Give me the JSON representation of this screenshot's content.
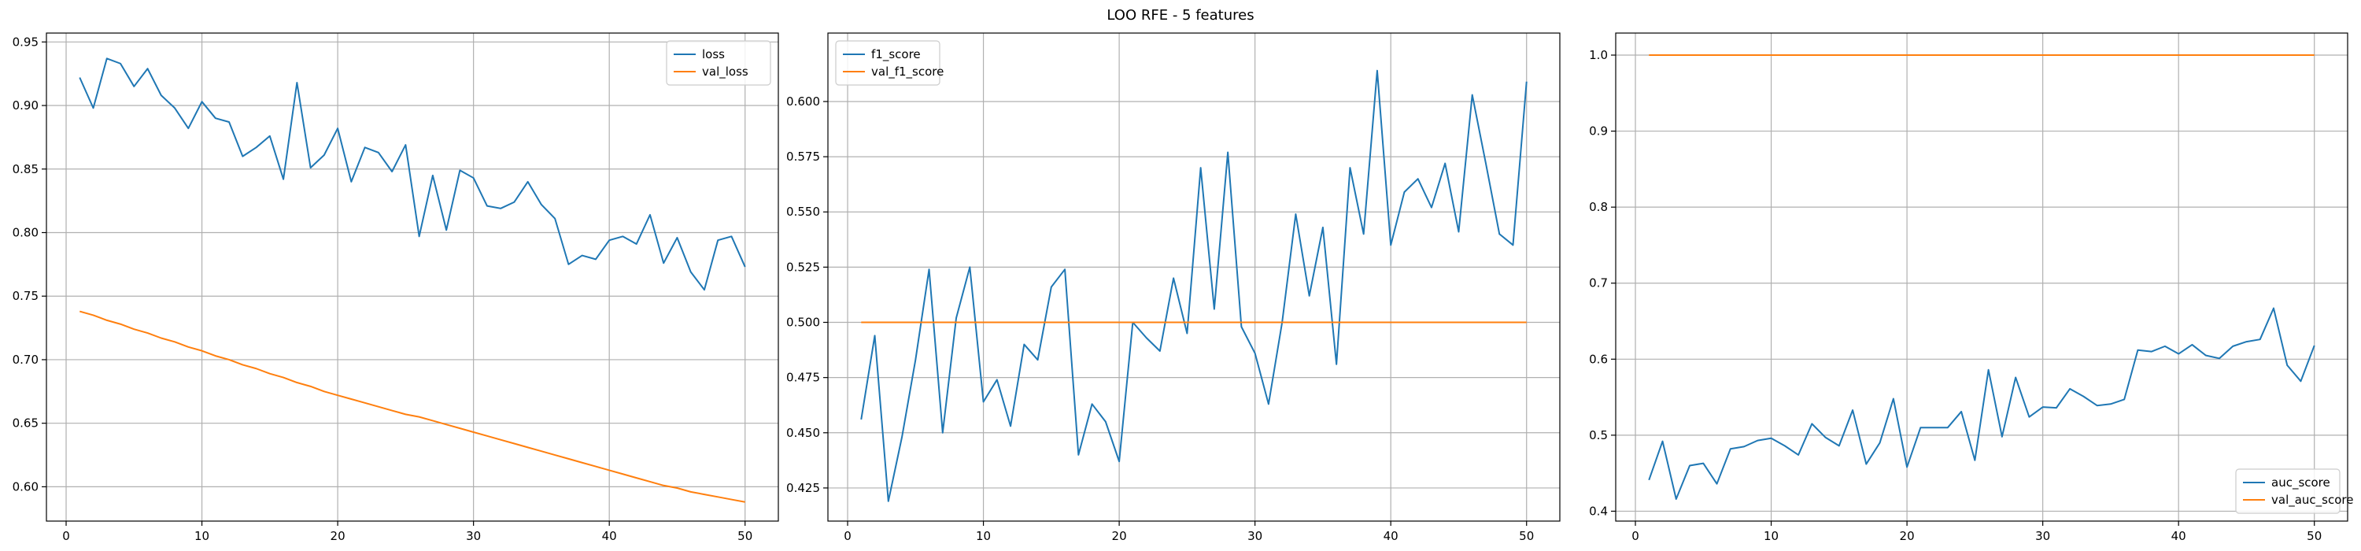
{
  "figure": {
    "suptitle": "LOO RFE - 5 features"
  },
  "colors": {
    "series_1": "#1f77b4",
    "series_2": "#ff7f0e",
    "grid": "#b0b0b0"
  },
  "chart_data": [
    {
      "type": "line",
      "title": "",
      "xlabel": "",
      "ylabel": "",
      "grid": true,
      "legend_position": "top-right",
      "xlim": [
        -1.45,
        52.45
      ],
      "ylim": [
        0.573,
        0.957
      ],
      "xticks": [
        0,
        10,
        20,
        30,
        40,
        50
      ],
      "xtick_labels": [
        "0",
        "10",
        "20",
        "30",
        "40",
        "50"
      ],
      "yticks": [
        0.6,
        0.65,
        0.7,
        0.75,
        0.8,
        0.85,
        0.9,
        0.95
      ],
      "ytick_labels": [
        "0.60",
        "0.65",
        "0.70",
        "0.75",
        "0.80",
        "0.85",
        "0.90",
        "0.95"
      ],
      "x": [
        1,
        2,
        3,
        4,
        5,
        6,
        7,
        8,
        9,
        10,
        11,
        12,
        13,
        14,
        15,
        16,
        17,
        18,
        19,
        20,
        21,
        22,
        23,
        24,
        25,
        26,
        27,
        28,
        29,
        30,
        31,
        32,
        33,
        34,
        35,
        36,
        37,
        38,
        39,
        40,
        41,
        42,
        43,
        44,
        45,
        46,
        47,
        48,
        49,
        50
      ],
      "series": [
        {
          "name": "loss",
          "values": [
            0.922,
            0.898,
            0.937,
            0.933,
            0.915,
            0.929,
            0.908,
            0.898,
            0.882,
            0.903,
            0.89,
            0.887,
            0.86,
            0.867,
            0.876,
            0.842,
            0.918,
            0.851,
            0.861,
            0.882,
            0.84,
            0.867,
            0.863,
            0.848,
            0.869,
            0.797,
            0.845,
            0.802,
            0.849,
            0.843,
            0.821,
            0.819,
            0.824,
            0.84,
            0.822,
            0.811,
            0.775,
            0.782,
            0.779,
            0.794,
            0.797,
            0.791,
            0.814,
            0.776,
            0.796,
            0.769,
            0.755,
            0.794,
            0.797,
            0.773
          ]
        },
        {
          "name": "val_loss",
          "values": [
            0.738,
            0.735,
            0.731,
            0.728,
            0.724,
            0.721,
            0.717,
            0.714,
            0.71,
            0.707,
            0.703,
            0.7,
            0.696,
            0.693,
            0.689,
            0.686,
            0.682,
            0.679,
            0.675,
            0.672,
            0.669,
            0.666,
            0.663,
            0.66,
            0.657,
            0.655,
            0.652,
            0.649,
            0.646,
            0.643,
            0.64,
            0.637,
            0.634,
            0.631,
            0.628,
            0.625,
            0.622,
            0.619,
            0.616,
            0.613,
            0.61,
            0.607,
            0.604,
            0.601,
            0.599,
            0.596,
            0.594,
            0.592,
            0.59,
            0.588
          ]
        }
      ]
    },
    {
      "type": "line",
      "title": "",
      "xlabel": "",
      "ylabel": "",
      "grid": true,
      "legend_position": "top-left",
      "xlim": [
        -1.45,
        52.45
      ],
      "ylim": [
        0.41,
        0.631
      ],
      "xticks": [
        0,
        10,
        20,
        30,
        40,
        50
      ],
      "xtick_labels": [
        "0",
        "10",
        "20",
        "30",
        "40",
        "50"
      ],
      "yticks": [
        0.425,
        0.45,
        0.475,
        0.5,
        0.525,
        0.55,
        0.575,
        0.6
      ],
      "ytick_labels": [
        "0.425",
        "0.450",
        "0.475",
        "0.500",
        "0.525",
        "0.550",
        "0.575",
        "0.600"
      ],
      "x": [
        1,
        2,
        3,
        4,
        5,
        6,
        7,
        8,
        9,
        10,
        11,
        12,
        13,
        14,
        15,
        16,
        17,
        18,
        19,
        20,
        21,
        22,
        23,
        24,
        25,
        26,
        27,
        28,
        29,
        30,
        31,
        32,
        33,
        34,
        35,
        36,
        37,
        38,
        39,
        40,
        41,
        42,
        43,
        44,
        45,
        46,
        47,
        48,
        49,
        50
      ],
      "series": [
        {
          "name": "f1_score",
          "values": [
            0.456,
            0.494,
            0.419,
            0.448,
            0.483,
            0.524,
            0.45,
            0.502,
            0.525,
            0.464,
            0.474,
            0.453,
            0.49,
            0.483,
            0.516,
            0.524,
            0.44,
            0.463,
            0.455,
            0.437,
            0.5,
            0.493,
            0.487,
            0.52,
            0.495,
            0.57,
            0.506,
            0.577,
            0.498,
            0.486,
            0.463,
            0.5,
            0.549,
            0.512,
            0.543,
            0.481,
            0.57,
            0.54,
            0.614,
            0.535,
            0.559,
            0.565,
            0.552,
            0.572,
            0.541,
            0.603,
            0.572,
            0.54,
            0.535,
            0.609
          ]
        },
        {
          "name": "val_f1_score",
          "values": [
            0.5,
            0.5,
            0.5,
            0.5,
            0.5,
            0.5,
            0.5,
            0.5,
            0.5,
            0.5,
            0.5,
            0.5,
            0.5,
            0.5,
            0.5,
            0.5,
            0.5,
            0.5,
            0.5,
            0.5,
            0.5,
            0.5,
            0.5,
            0.5,
            0.5,
            0.5,
            0.5,
            0.5,
            0.5,
            0.5,
            0.5,
            0.5,
            0.5,
            0.5,
            0.5,
            0.5,
            0.5,
            0.5,
            0.5,
            0.5,
            0.5,
            0.5,
            0.5,
            0.5,
            0.5,
            0.5,
            0.5,
            0.5,
            0.5,
            0.5
          ]
        }
      ]
    },
    {
      "type": "line",
      "title": "",
      "xlabel": "",
      "ylabel": "",
      "grid": true,
      "legend_position": "bottom-right",
      "xlim": [
        -1.45,
        52.45
      ],
      "ylim": [
        0.387,
        1.029
      ],
      "xticks": [
        0,
        10,
        20,
        30,
        40,
        50
      ],
      "xtick_labels": [
        "0",
        "10",
        "20",
        "30",
        "40",
        "50"
      ],
      "yticks": [
        0.4,
        0.5,
        0.6,
        0.7,
        0.8,
        0.9,
        1.0
      ],
      "ytick_labels": [
        "0.4",
        "0.5",
        "0.6",
        "0.7",
        "0.8",
        "0.9",
        "1.0"
      ],
      "x": [
        1,
        2,
        3,
        4,
        5,
        6,
        7,
        8,
        9,
        10,
        11,
        12,
        13,
        14,
        15,
        16,
        17,
        18,
        19,
        20,
        21,
        22,
        23,
        24,
        25,
        26,
        27,
        28,
        29,
        30,
        31,
        32,
        33,
        34,
        35,
        36,
        37,
        38,
        39,
        40,
        41,
        42,
        43,
        44,
        45,
        46,
        47,
        48,
        49,
        50
      ],
      "series": [
        {
          "name": "auc_score",
          "values": [
            0.441,
            0.492,
            0.416,
            0.46,
            0.463,
            0.436,
            0.482,
            0.485,
            0.493,
            0.496,
            0.486,
            0.474,
            0.515,
            0.497,
            0.486,
            0.533,
            0.462,
            0.49,
            0.548,
            0.458,
            0.51,
            0.51,
            0.51,
            0.531,
            0.467,
            0.586,
            0.498,
            0.576,
            0.524,
            0.537,
            0.536,
            0.561,
            0.551,
            0.539,
            0.541,
            0.547,
            0.612,
            0.61,
            0.617,
            0.607,
            0.619,
            0.605,
            0.601,
            0.617,
            0.623,
            0.626,
            0.667,
            0.592,
            0.571,
            0.618
          ]
        },
        {
          "name": "val_auc_score",
          "values": [
            1.0,
            1.0,
            1.0,
            1.0,
            1.0,
            1.0,
            1.0,
            1.0,
            1.0,
            1.0,
            1.0,
            1.0,
            1.0,
            1.0,
            1.0,
            1.0,
            1.0,
            1.0,
            1.0,
            1.0,
            1.0,
            1.0,
            1.0,
            1.0,
            1.0,
            1.0,
            1.0,
            1.0,
            1.0,
            1.0,
            1.0,
            1.0,
            1.0,
            1.0,
            1.0,
            1.0,
            1.0,
            1.0,
            1.0,
            1.0,
            1.0,
            1.0,
            1.0,
            1.0,
            1.0,
            1.0,
            1.0,
            1.0,
            1.0,
            1.0
          ]
        }
      ]
    }
  ]
}
